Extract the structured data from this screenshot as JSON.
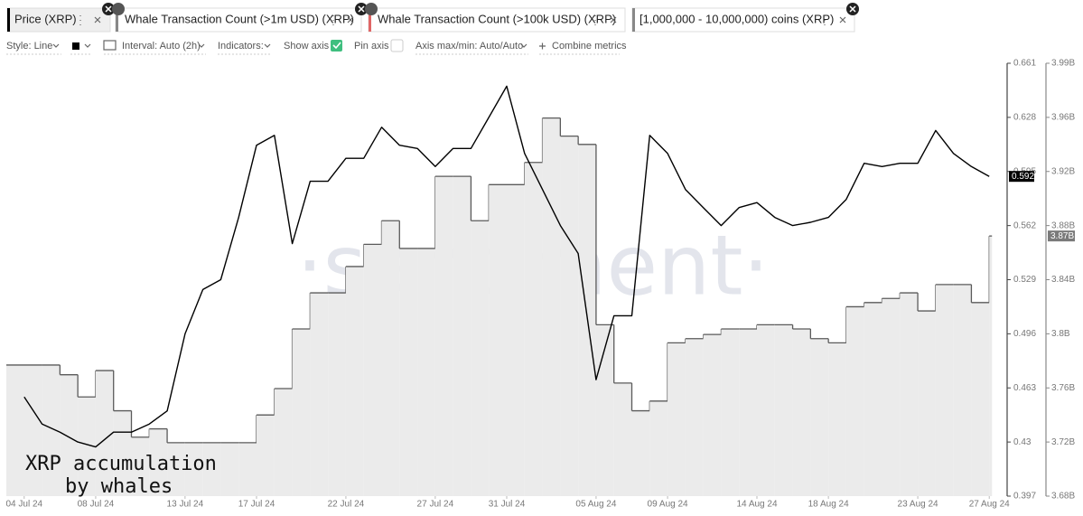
{
  "chart_data": {
    "type": "line-area",
    "x": [
      "2024-07-04",
      "2024-07-05",
      "2024-07-06",
      "2024-07-07",
      "2024-07-08",
      "2024-07-09",
      "2024-07-10",
      "2024-07-11",
      "2024-07-12",
      "2024-07-13",
      "2024-07-14",
      "2024-07-15",
      "2024-07-16",
      "2024-07-17",
      "2024-07-18",
      "2024-07-19",
      "2024-07-20",
      "2024-07-21",
      "2024-07-22",
      "2024-07-23",
      "2024-07-24",
      "2024-07-25",
      "2024-07-26",
      "2024-07-27",
      "2024-07-28",
      "2024-07-29",
      "2024-07-30",
      "2024-07-31",
      "2024-08-01",
      "2024-08-02",
      "2024-08-03",
      "2024-08-04",
      "2024-08-05",
      "2024-08-06",
      "2024-08-07",
      "2024-08-08",
      "2024-08-09",
      "2024-08-10",
      "2024-08-11",
      "2024-08-12",
      "2024-08-13",
      "2024-08-14",
      "2024-08-15",
      "2024-08-16",
      "2024-08-17",
      "2024-08-18",
      "2024-08-19",
      "2024-08-20",
      "2024-08-21",
      "2024-08-22",
      "2024-08-23",
      "2024-08-24",
      "2024-08-25",
      "2024-08-26",
      "2024-08-27"
    ],
    "xlim": [
      "2024-07-03",
      "2024-08-28"
    ],
    "xticks": [
      {
        "value": "2024-07-04",
        "label": "04 Jul 24"
      },
      {
        "value": "2024-07-08",
        "label": "08 Jul 24"
      },
      {
        "value": "2024-07-13",
        "label": "13 Jul 24"
      },
      {
        "value": "2024-07-17",
        "label": "17 Jul 24"
      },
      {
        "value": "2024-07-22",
        "label": "22 Jul 24"
      },
      {
        "value": "2024-07-27",
        "label": "27 Jul 24"
      },
      {
        "value": "2024-07-31",
        "label": "31 Jul 24"
      },
      {
        "value": "2024-08-05",
        "label": "05 Aug 24"
      },
      {
        "value": "2024-08-09",
        "label": "09 Aug 24"
      },
      {
        "value": "2024-08-14",
        "label": "14 Aug 24"
      },
      {
        "value": "2024-08-18",
        "label": "18 Aug 24"
      },
      {
        "value": "2024-08-23",
        "label": "23 Aug 24"
      },
      {
        "value": "2024-08-27",
        "label": "27 Aug 24"
      }
    ],
    "ylim": [
      0.397,
      0.661
    ],
    "yticks": [
      0.397,
      0.43,
      0.463,
      0.496,
      0.529,
      0.562,
      0.595,
      0.628,
      0.661
    ],
    "y2lim": [
      3682500000,
      3994500000
    ],
    "y2ticks": [
      {
        "value": 3682500000,
        "label": "3.68B"
      },
      {
        "value": 3721500000,
        "label": "3.72B"
      },
      {
        "value": 3760500000,
        "label": "3.76B"
      },
      {
        "value": 3799500000,
        "label": "3.8B"
      },
      {
        "value": 3838500000,
        "label": "3.84B"
      },
      {
        "value": 3877500000,
        "label": "3.88B"
      },
      {
        "value": 3916500000,
        "label": "3.92B"
      },
      {
        "value": 3955500000,
        "label": "3.96B"
      },
      {
        "value": 3994500000,
        "label": "3.99B"
      }
    ],
    "series": [
      {
        "name": "Price (XRP)",
        "color": "#000000",
        "axis": "y",
        "values": [
          0.4575,
          0.441,
          0.436,
          0.43,
          0.427,
          0.436,
          0.436,
          0.441,
          0.449,
          0.496,
          0.523,
          0.529,
          0.567,
          0.611,
          0.617,
          0.551,
          0.589,
          0.589,
          0.603,
          0.603,
          0.622,
          0.611,
          0.609,
          0.598,
          0.609,
          0.609,
          0.628,
          0.647,
          0.606,
          0.584,
          0.562,
          0.545,
          0.468,
          0.507,
          0.507,
          0.617,
          0.606,
          0.584,
          0.573,
          0.562,
          0.573,
          0.576,
          0.567,
          0.562,
          0.564,
          0.567,
          0.578,
          0.6,
          0.598,
          0.6,
          0.6,
          0.62,
          0.606,
          0.598,
          0.592
        ]
      },
      {
        "name": "[1,000,000 - 10,000,000) coins (XRP)",
        "color": "#5a5a5a",
        "fill": "#ebebeb",
        "axis": "y2",
        "values": [
          3777000000,
          3777000000,
          3770000000,
          3754000000,
          3773000000,
          3744000000,
          3725000000,
          3731000000,
          3721000000,
          3721000000,
          3721000000,
          3721000000,
          3721000000,
          3741000000,
          3760000000,
          3803000000,
          3829000000,
          3829000000,
          3848000000,
          3864000000,
          3881000000,
          3861000000,
          3861000000,
          3913000000,
          3913000000,
          3881000000,
          3907000000,
          3907000000,
          3923000000,
          3955000000,
          3942000000,
          3936000000,
          3806000000,
          3764000000,
          3744000000,
          3751000000,
          3793000000,
          3796000000,
          3799000000,
          3803000000,
          3803000000,
          3806000000,
          3806000000,
          3803000000,
          3796000000,
          3793000000,
          3819000000,
          3822000000,
          3825000000,
          3829000000,
          3816000000,
          3835000000,
          3835000000,
          3822000000,
          3870000000
        ]
      }
    ],
    "badges": [
      {
        "value": 0.592,
        "label": "0.592",
        "axis": "y",
        "color": "#000000"
      },
      {
        "value": 3870000000,
        "label": "3.87B",
        "axis": "y2",
        "color": "#7a7a7a"
      }
    ],
    "watermark": "·santiment·",
    "annotation": [
      "XRP accumulation",
      "by whales"
    ]
  },
  "other_metrics": [
    "Whale Transaction Count (>1m USD) (XRP)",
    "Whale Transaction Count (>100k USD) (XRP)"
  ],
  "toolbar": {
    "style": "Style: Line",
    "interval": "Interval: Auto (2h)",
    "indicators": "Indicators:",
    "show_axis": "Show axis",
    "pin_axis": "Pin axis",
    "axis_minmax": "Axis max/min: Auto/Auto",
    "combine": "Combine metrics"
  }
}
